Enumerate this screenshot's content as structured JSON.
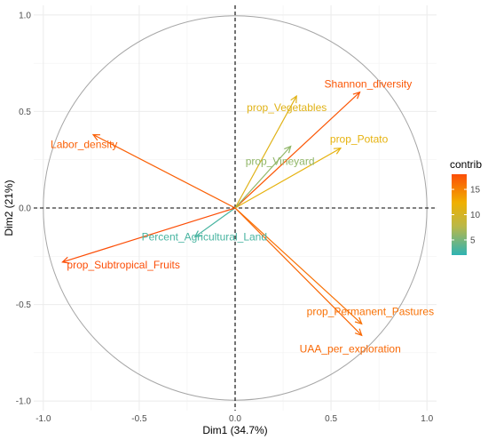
{
  "chart_data": {
    "type": "scatter",
    "subtype": "pca-correlation-circle",
    "title": "",
    "xlabel": "Dim1 (34.7%)",
    "ylabel": "Dim2 (21%)",
    "xlim": [
      -1.05,
      1.05
    ],
    "ylim": [
      -1.05,
      1.05
    ],
    "xticks": [
      -1.0,
      -0.5,
      0.0,
      0.5,
      1.0
    ],
    "yticks": [
      -1.0,
      -0.5,
      0.0,
      0.5,
      1.0
    ],
    "xtick_labels": [
      "-1.0",
      "-0.5",
      "0.0",
      "0.5",
      "1.0"
    ],
    "ytick_labels": [
      "-1.0",
      "-0.5",
      "0.0",
      "0.5",
      "1.0"
    ],
    "grid": true,
    "unit_circle": true,
    "legend": {
      "title": "contrib",
      "placement": "right",
      "min": 2,
      "max": 18,
      "ticks": [
        5,
        10,
        15
      ],
      "tick_labels": [
        "5",
        "10",
        "15"
      ],
      "colors": [
        "#00AFBB",
        "#E7B800",
        "#FC4E07"
      ]
    },
    "variables": [
      {
        "name": "Shannon_diversity",
        "x": 0.65,
        "y": 0.6,
        "contrib": 17.5
      },
      {
        "name": "prop_Vegetables",
        "x": 0.32,
        "y": 0.58,
        "contrib": 11.0
      },
      {
        "name": "prop_Potato",
        "x": 0.55,
        "y": 0.31,
        "contrib": 11.5
      },
      {
        "name": "prop_Vineyard",
        "x": 0.29,
        "y": 0.32,
        "contrib": 6.0
      },
      {
        "name": "Labor_density",
        "x": -0.74,
        "y": 0.38,
        "contrib": 17.0
      },
      {
        "name": "Percent_Agricultural_Land",
        "x": -0.21,
        "y": -0.15,
        "contrib": 3.0
      },
      {
        "name": "prop_Subtropical_Fruits",
        "x": -0.9,
        "y": -0.28,
        "contrib": 18.0
      },
      {
        "name": "prop_Permanent_Pastures",
        "x": 0.66,
        "y": -0.6,
        "contrib": 16.0
      },
      {
        "name": "UAA_per_exploration",
        "x": 0.66,
        "y": -0.66,
        "contrib": 16.5
      }
    ]
  }
}
